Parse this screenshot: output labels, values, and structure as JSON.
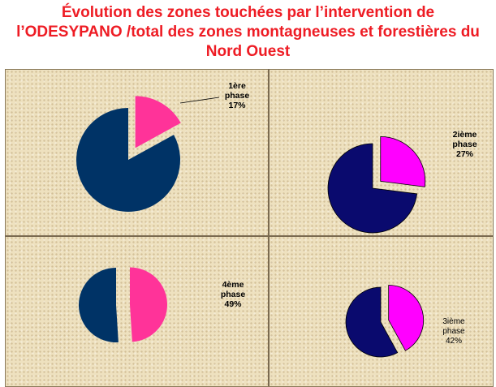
{
  "title": "Évolution des zones touchées par l’intervention de l’ODESYPANO /total des zones montagneuses et forestières du Nord Ouest",
  "title_lines": [
    "Évolution des zones touchées par l’intervention de",
    "l’ODESYPANO /total des zones montagneuses et forestières du",
    "Nord Ouest"
  ],
  "colors": {
    "title": "#ee1c24",
    "rest_phase1": "#003366",
    "rest_other": "#0a0a6e",
    "slice_phase1": "#ff3399",
    "slice_phase2": "#ff00ff",
    "slice_phase3": "#ff00ff",
    "slice_phase4": "#ff3399",
    "background": "#eee1bf"
  },
  "chart_data": [
    {
      "type": "pie",
      "slices": [
        {
          "value": 17,
          "label_lines": [
            "1ère",
            "phase",
            "17%"
          ]
        },
        {
          "value": 83
        }
      ]
    },
    {
      "type": "pie",
      "slices": [
        {
          "value": 27,
          "label_lines": [
            "2ième",
            "phase",
            "27%"
          ]
        },
        {
          "value": 73
        }
      ]
    },
    {
      "type": "pie",
      "slices": [
        {
          "value": 49,
          "label_lines": [
            "4ème",
            "phase",
            "49%"
          ]
        },
        {
          "value": 51
        }
      ]
    },
    {
      "type": "pie",
      "slices": [
        {
          "value": 42,
          "label_lines": [
            "3ième",
            "phase",
            "42%"
          ]
        },
        {
          "value": 58
        }
      ]
    }
  ]
}
